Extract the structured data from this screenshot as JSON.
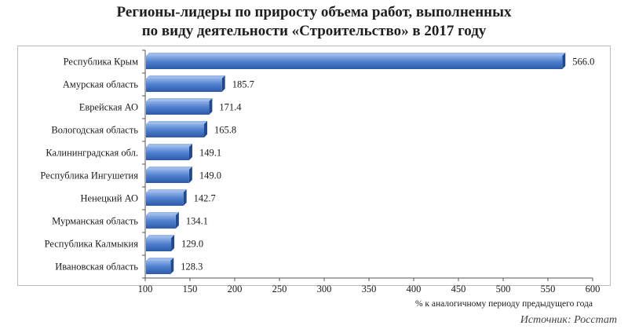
{
  "chart_data": {
    "type": "bar",
    "orientation": "horizontal",
    "title_line1": "Регионы-лидеры по приросту объема работ, выполненных",
    "title_line2": "по виду деятельности «Строительство» в 2017 году",
    "categories": [
      "Республика Крым",
      "Амурская область",
      "Еврейская АО",
      "Вологодская область",
      "Калининградская обл.",
      "Республика Ингушетия",
      "Ненецкий АО",
      "Мурманская область",
      "Республика Калмыкия",
      "Ивановская область"
    ],
    "values": [
      566.0,
      185.7,
      171.4,
      165.8,
      149.1,
      149.0,
      142.7,
      134.1,
      129.0,
      128.3
    ],
    "value_labels": [
      "566.0",
      "185.7",
      "171.4",
      "165.8",
      "149.1",
      "149.0",
      "142.7",
      "134.1",
      "129.0",
      "128.3"
    ],
    "xlabel": "% к аналогичному периоду предыдущего года",
    "xlim": [
      100,
      600
    ],
    "xticks": [
      "100",
      "150",
      "200",
      "250",
      "300",
      "350",
      "400",
      "450",
      "500",
      "550",
      "600"
    ],
    "grid": false,
    "legend": "none",
    "bar_color": "#4a77c4"
  },
  "source": "Источник: Росстат"
}
